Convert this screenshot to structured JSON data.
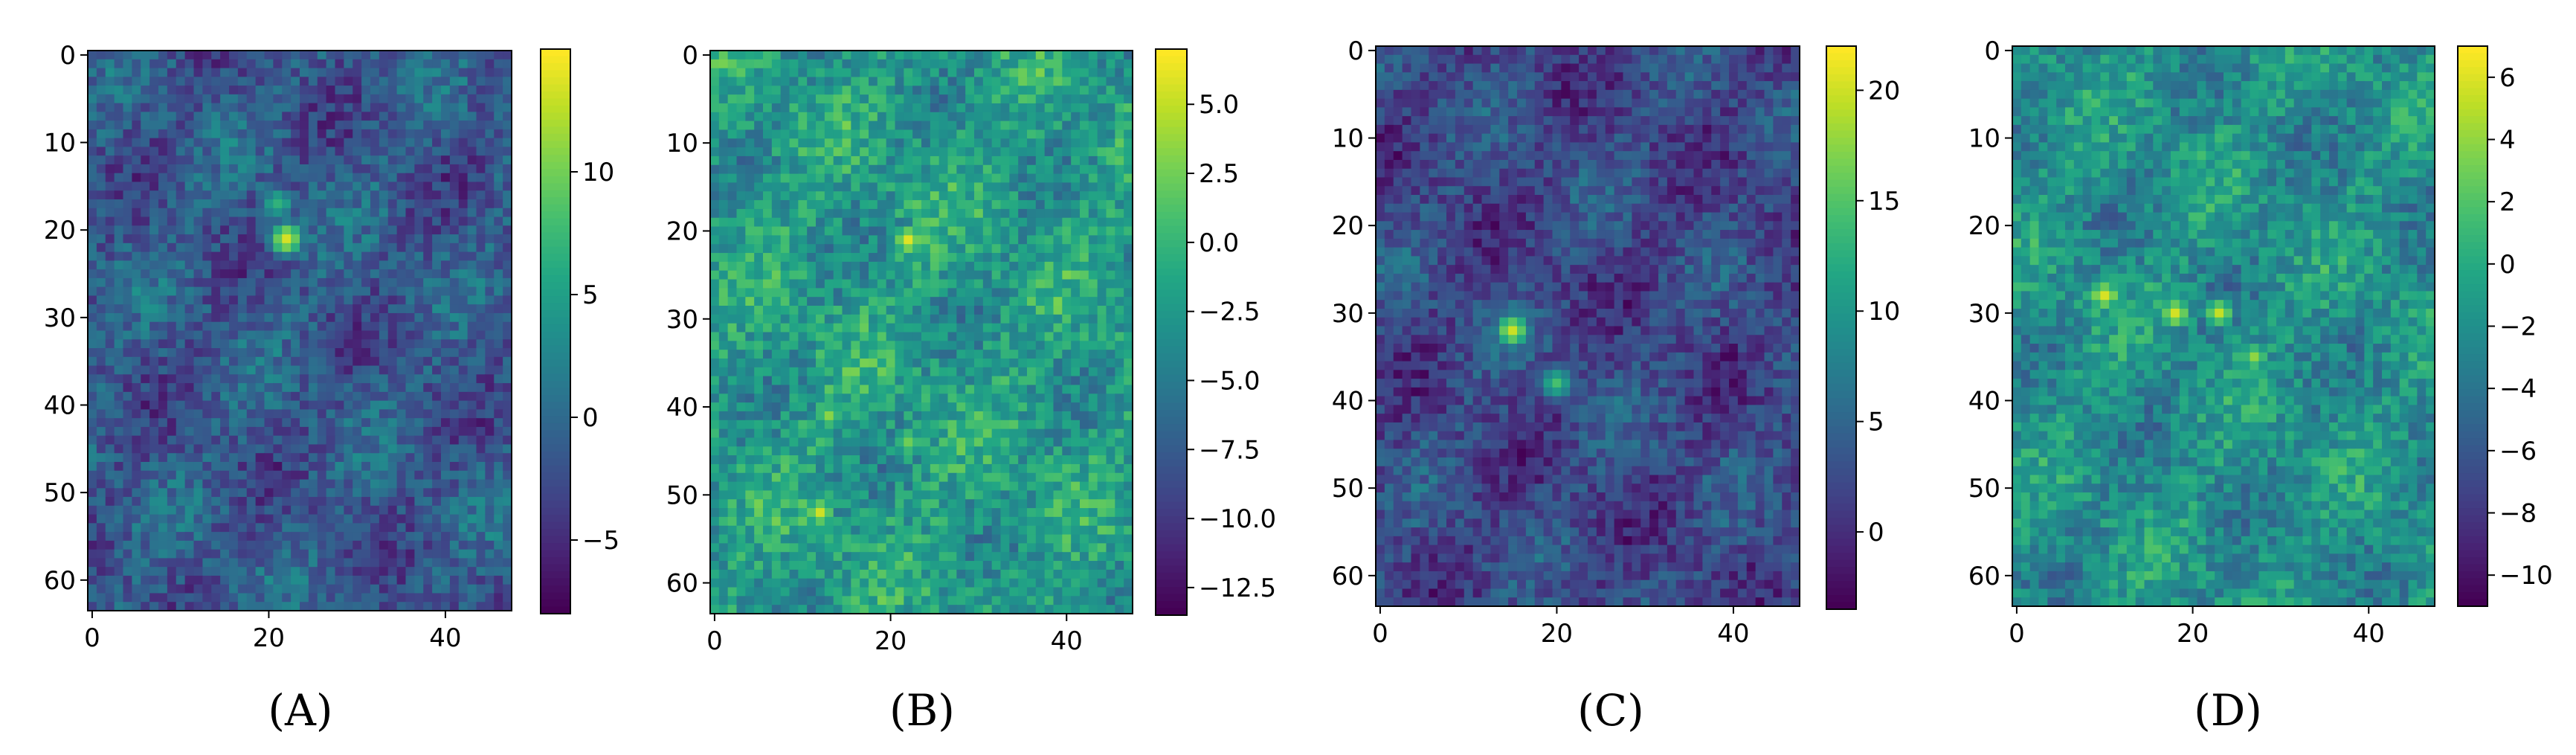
{
  "chart_data": [
    {
      "type": "heatmap",
      "caption": "(A)",
      "colormap": "viridis",
      "grid": false,
      "rows": 64,
      "cols": 48,
      "x_ticks": [
        0,
        20,
        40
      ],
      "y_ticks": [
        0,
        10,
        20,
        30,
        40,
        50,
        60
      ],
      "colorbar": {
        "ticks": [
          "−5",
          "0",
          "5",
          "10"
        ],
        "tick_values": [
          -5,
          0,
          5,
          10
        ],
        "range": [
          -8,
          15
        ]
      },
      "hotspots": [
        {
          "x": 22,
          "y": 21,
          "value": 14
        },
        {
          "x": 21,
          "y": 17,
          "value": 7
        }
      ]
    },
    {
      "type": "heatmap",
      "caption": "(B)",
      "colormap": "viridis",
      "grid": false,
      "rows": 64,
      "cols": 48,
      "x_ticks": [
        0,
        20,
        40
      ],
      "y_ticks": [
        0,
        10,
        20,
        30,
        40,
        50,
        60
      ],
      "colorbar": {
        "ticks": [
          "−12.5",
          "−10.0",
          "−7.5",
          "−5.0",
          "−2.5",
          "0.0",
          "2.5",
          "5.0"
        ],
        "tick_values": [
          -12.5,
          -10,
          -7.5,
          -5,
          -2.5,
          0,
          2.5,
          5
        ],
        "range": [
          -13.5,
          7
        ]
      },
      "hotspots": [
        {
          "x": 22,
          "y": 21,
          "value": 6
        },
        {
          "x": 12,
          "y": 52,
          "value": 5
        },
        {
          "x": 13,
          "y": 41,
          "value": 3
        },
        {
          "x": 22,
          "y": 44,
          "value": 3
        }
      ]
    },
    {
      "type": "heatmap",
      "caption": "(C)",
      "colormap": "viridis",
      "grid": false,
      "rows": 64,
      "cols": 48,
      "x_ticks": [
        0,
        20,
        40
      ],
      "y_ticks": [
        0,
        10,
        20,
        30,
        40,
        50,
        60
      ],
      "colorbar": {
        "ticks": [
          "0",
          "5",
          "10",
          "15",
          "20"
        ],
        "tick_values": [
          0,
          5,
          10,
          15,
          20
        ],
        "range": [
          -3.5,
          22
        ]
      },
      "hotspots": [
        {
          "x": 15,
          "y": 32,
          "value": 20
        },
        {
          "x": 20,
          "y": 38,
          "value": 14
        }
      ]
    },
    {
      "type": "heatmap",
      "caption": "(D)",
      "colormap": "viridis",
      "grid": false,
      "rows": 64,
      "cols": 48,
      "x_ticks": [
        0,
        20,
        40
      ],
      "y_ticks": [
        0,
        10,
        20,
        30,
        40,
        50,
        60
      ],
      "colorbar": {
        "ticks": [
          "−10",
          "−8",
          "−6",
          "−4",
          "−2",
          "0",
          "2",
          "4",
          "6"
        ],
        "tick_values": [
          -10,
          -8,
          -6,
          -4,
          -2,
          0,
          2,
          4,
          6
        ],
        "range": [
          -11,
          7
        ]
      },
      "hotspots": [
        {
          "x": 10,
          "y": 28,
          "value": 6
        },
        {
          "x": 18,
          "y": 30,
          "value": 6
        },
        {
          "x": 23,
          "y": 30,
          "value": 5
        },
        {
          "x": 27,
          "y": 35,
          "value": 4
        }
      ]
    }
  ]
}
